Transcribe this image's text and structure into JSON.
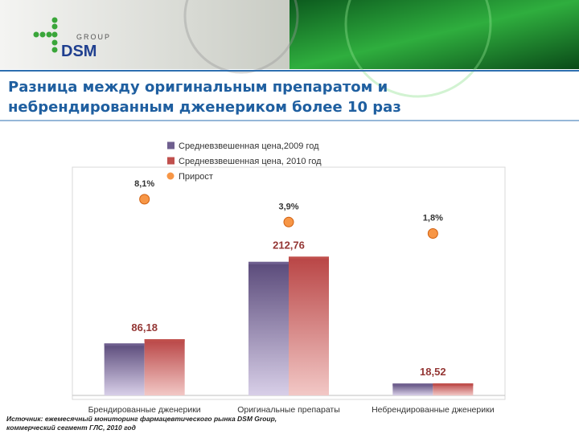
{
  "logo": {
    "group": "GROUP",
    "name": "DSM"
  },
  "chart_data": {
    "type": "bar",
    "title": "Разница между оригинальным препаратом и небрендированным дженериком более 10 раз",
    "source": "Источник: ежемесячный мониторинг фармацевтического рынка DSM Group, коммерческий сегмент ГЛС, 2010 год",
    "categories": [
      "Брендированные дженерики",
      "Оригинальные препараты",
      "Небрендированные дженерики"
    ],
    "ylim": [
      0,
      350
    ],
    "y2lim": [
      -28,
      14
    ],
    "legend": "top",
    "series": [
      {
        "name": "Средневзвешенная цена,2009 год",
        "color": "#6f5f8f",
        "values": [
          79.7,
          204.8,
          18.2
        ]
      },
      {
        "name": "Средневзвешенная цена, 2010 год",
        "color": "#c0504d",
        "values": [
          86.18,
          212.76,
          18.52
        ],
        "value_labels": [
          "86,18",
          "212,76",
          "18,52"
        ]
      },
      {
        "name": "Прирост",
        "color": "#f79646",
        "type": "scatter",
        "axis": "y2",
        "values": [
          8.1,
          3.9,
          1.8
        ],
        "value_labels": [
          "8,1%",
          "3,9%",
          "1,8%"
        ]
      }
    ]
  }
}
